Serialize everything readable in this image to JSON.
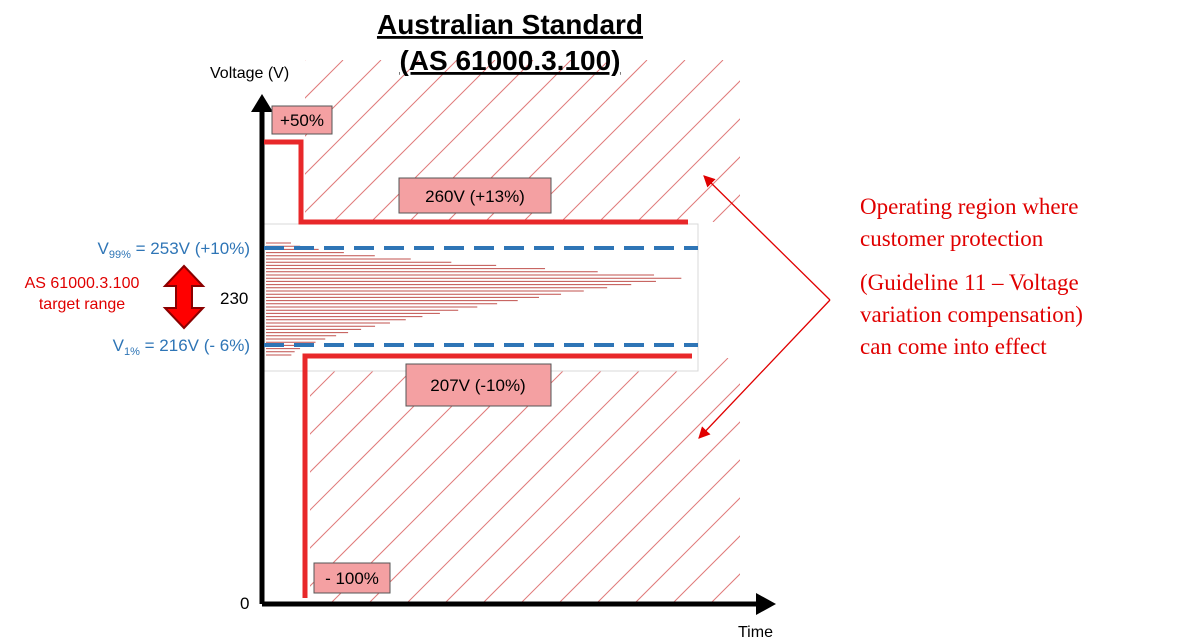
{
  "title_line1": "Australian Standard",
  "title_line2": "(AS 61000.3.100)",
  "y_axis_label": "Voltage (V)",
  "x_axis_label": "Time",
  "zero_label": "0",
  "nominal_label": "230",
  "limits": {
    "plus50": "+50%",
    "upper": "260V (+13%)",
    "lower": "207V (-10%)",
    "minus100": "- 100%"
  },
  "v99": {
    "base": "V",
    "sub": "99%",
    "rest": " = 253V (+10%)"
  },
  "v1": {
    "base": "V",
    "sub": "1%",
    "rest": " = 216V (- 6%)"
  },
  "target_range": {
    "line1": "AS 61000.3.100",
    "line2": "target range"
  },
  "annotation": [
    "Operating region where",
    "customer protection",
    "(Guideline 11 – Voltage",
    "variation compensation)",
    "can come into effect"
  ],
  "colors": {
    "red": "#e00000",
    "limit_red": "#e8282a",
    "blue": "#2e75b6",
    "box_fill": "#f4a0a2",
    "hatch": "#e07a7a"
  }
}
